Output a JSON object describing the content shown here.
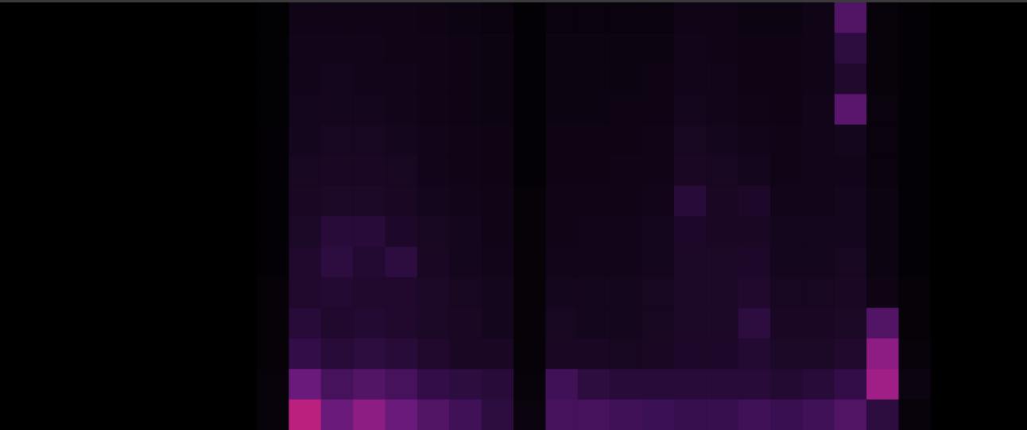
{
  "chart_data": {
    "type": "heatmap",
    "tick_labels": false,
    "color_range": [
      0,
      100
    ],
    "cells": [
      [
        0,
        0,
        0,
        0,
        0,
        0,
        0,
        0,
        1,
        8,
        8,
        8,
        8,
        7,
        6,
        5,
        2,
        5,
        5,
        5,
        5,
        8,
        8,
        6,
        6,
        8,
        35,
        4,
        2,
        0,
        0,
        0
      ],
      [
        0,
        0,
        0,
        0,
        0,
        0,
        0,
        0,
        1,
        9,
        9,
        9,
        8,
        8,
        7,
        6,
        2,
        6,
        6,
        6,
        6,
        9,
        8,
        7,
        7,
        8,
        20,
        4,
        2,
        0,
        0,
        0
      ],
      [
        0,
        0,
        0,
        0,
        0,
        0,
        0,
        0,
        1,
        9,
        10,
        9,
        9,
        8,
        7,
        6,
        2,
        6,
        6,
        6,
        7,
        9,
        9,
        7,
        7,
        8,
        15,
        4,
        2,
        0,
        0,
        0
      ],
      [
        0,
        0,
        0,
        0,
        0,
        0,
        0,
        0,
        1,
        10,
        10,
        10,
        9,
        8,
        7,
        6,
        2,
        6,
        6,
        7,
        7,
        10,
        9,
        8,
        7,
        9,
        38,
        5,
        2,
        0,
        0,
        0
      ],
      [
        0,
        0,
        0,
        0,
        0,
        0,
        0,
        0,
        2,
        10,
        11,
        11,
        10,
        9,
        8,
        7,
        2,
        7,
        7,
        7,
        8,
        11,
        10,
        9,
        8,
        9,
        10,
        5,
        2,
        0,
        0,
        0
      ],
      [
        0,
        0,
        0,
        0,
        0,
        0,
        0,
        0,
        2,
        11,
        12,
        12,
        11,
        9,
        8,
        7,
        2,
        7,
        7,
        8,
        8,
        12,
        11,
        10,
        8,
        9,
        9,
        5,
        2,
        0,
        0,
        0
      ],
      [
        0,
        0,
        0,
        0,
        0,
        0,
        0,
        0,
        2,
        12,
        13,
        13,
        12,
        10,
        9,
        8,
        3,
        8,
        8,
        8,
        9,
        18,
        12,
        14,
        9,
        9,
        10,
        6,
        2,
        0,
        0,
        0
      ],
      [
        0,
        0,
        0,
        0,
        0,
        0,
        0,
        0,
        2,
        13,
        18,
        18,
        14,
        11,
        10,
        8,
        3,
        8,
        9,
        9,
        10,
        14,
        12,
        12,
        10,
        10,
        10,
        6,
        2,
        0,
        0,
        0
      ],
      [
        0,
        0,
        0,
        0,
        0,
        0,
        0,
        0,
        2,
        15,
        20,
        16,
        20,
        12,
        10,
        9,
        3,
        9,
        9,
        9,
        10,
        13,
        13,
        14,
        10,
        10,
        11,
        6,
        2,
        0,
        0,
        0
      ],
      [
        0,
        0,
        0,
        0,
        0,
        0,
        0,
        0,
        3,
        15,
        16,
        15,
        15,
        13,
        11,
        10,
        3,
        10,
        10,
        10,
        11,
        13,
        13,
        15,
        11,
        11,
        12,
        7,
        3,
        0,
        0,
        0
      ],
      [
        0,
        0,
        0,
        0,
        0,
        0,
        0,
        0,
        3,
        18,
        15,
        16,
        15,
        13,
        12,
        10,
        3,
        11,
        10,
        10,
        11,
        13,
        13,
        20,
        12,
        12,
        13,
        35,
        3,
        0,
        0,
        0
      ],
      [
        0,
        0,
        0,
        0,
        0,
        0,
        0,
        0,
        3,
        22,
        18,
        20,
        18,
        15,
        12,
        12,
        3,
        12,
        12,
        11,
        12,
        14,
        14,
        16,
        13,
        13,
        15,
        55,
        4,
        0,
        0,
        0
      ],
      [
        0,
        0,
        0,
        0,
        0,
        0,
        0,
        0,
        4,
        45,
        30,
        35,
        30,
        22,
        20,
        18,
        4,
        28,
        20,
        18,
        18,
        18,
        18,
        18,
        16,
        18,
        22,
        60,
        6,
        0,
        0,
        0
      ],
      [
        0,
        0,
        0,
        0,
        0,
        0,
        0,
        0,
        4,
        70,
        45,
        55,
        45,
        35,
        28,
        20,
        5,
        30,
        30,
        28,
        26,
        24,
        24,
        28,
        25,
        28,
        35,
        20,
        4,
        0,
        0,
        0
      ]
    ]
  }
}
